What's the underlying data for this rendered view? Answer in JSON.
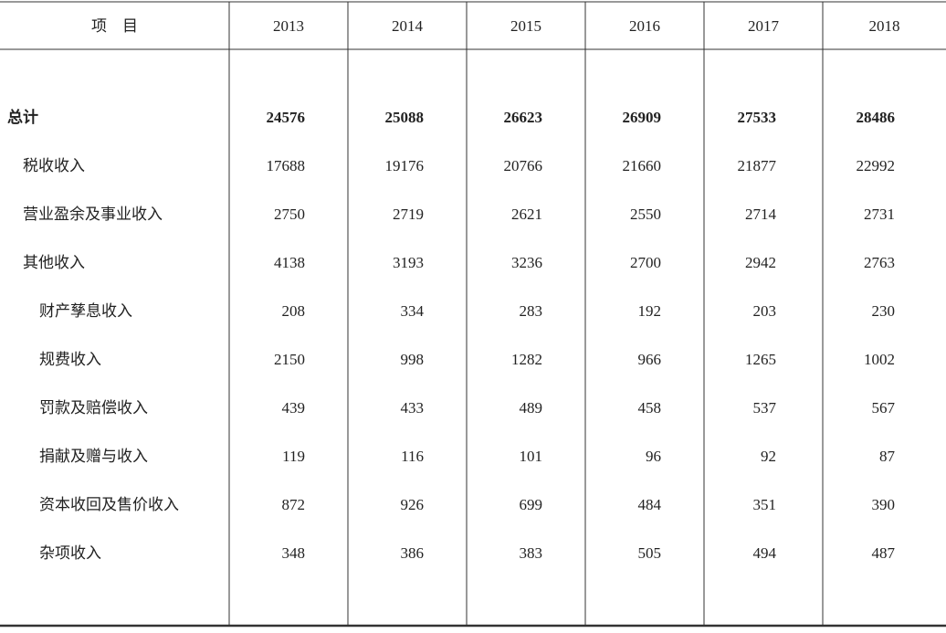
{
  "table": {
    "header": [
      "项　目",
      "2013",
      "2014",
      "2015",
      "2016",
      "2017",
      "2018"
    ],
    "rows": [
      [
        "总计",
        24576,
        25088,
        26623,
        26909,
        27533,
        28486
      ],
      [
        "税收收入",
        17688,
        19176,
        20766,
        21660,
        21877,
        22992
      ],
      [
        "营业盈余及事业收入",
        2750,
        2719,
        2621,
        2550,
        2714,
        2731
      ],
      [
        "其他收入",
        4138,
        3193,
        3236,
        2700,
        2942,
        2763
      ],
      [
        "财产孳息收入",
        208,
        334,
        283,
        192,
        203,
        230
      ],
      [
        "规费收入",
        2150,
        998,
        1282,
        966,
        1265,
        1002
      ],
      [
        "罚款及赔偿收入",
        439,
        433,
        489,
        458,
        537,
        567
      ],
      [
        "捐献及赠与收入",
        119,
        116,
        101,
        96,
        92,
        87
      ],
      [
        "资本收回及售价收入",
        872,
        926,
        699,
        484,
        351,
        390
      ],
      [
        "杂项收入",
        348,
        386,
        383,
        505,
        494,
        487
      ]
    ]
  }
}
